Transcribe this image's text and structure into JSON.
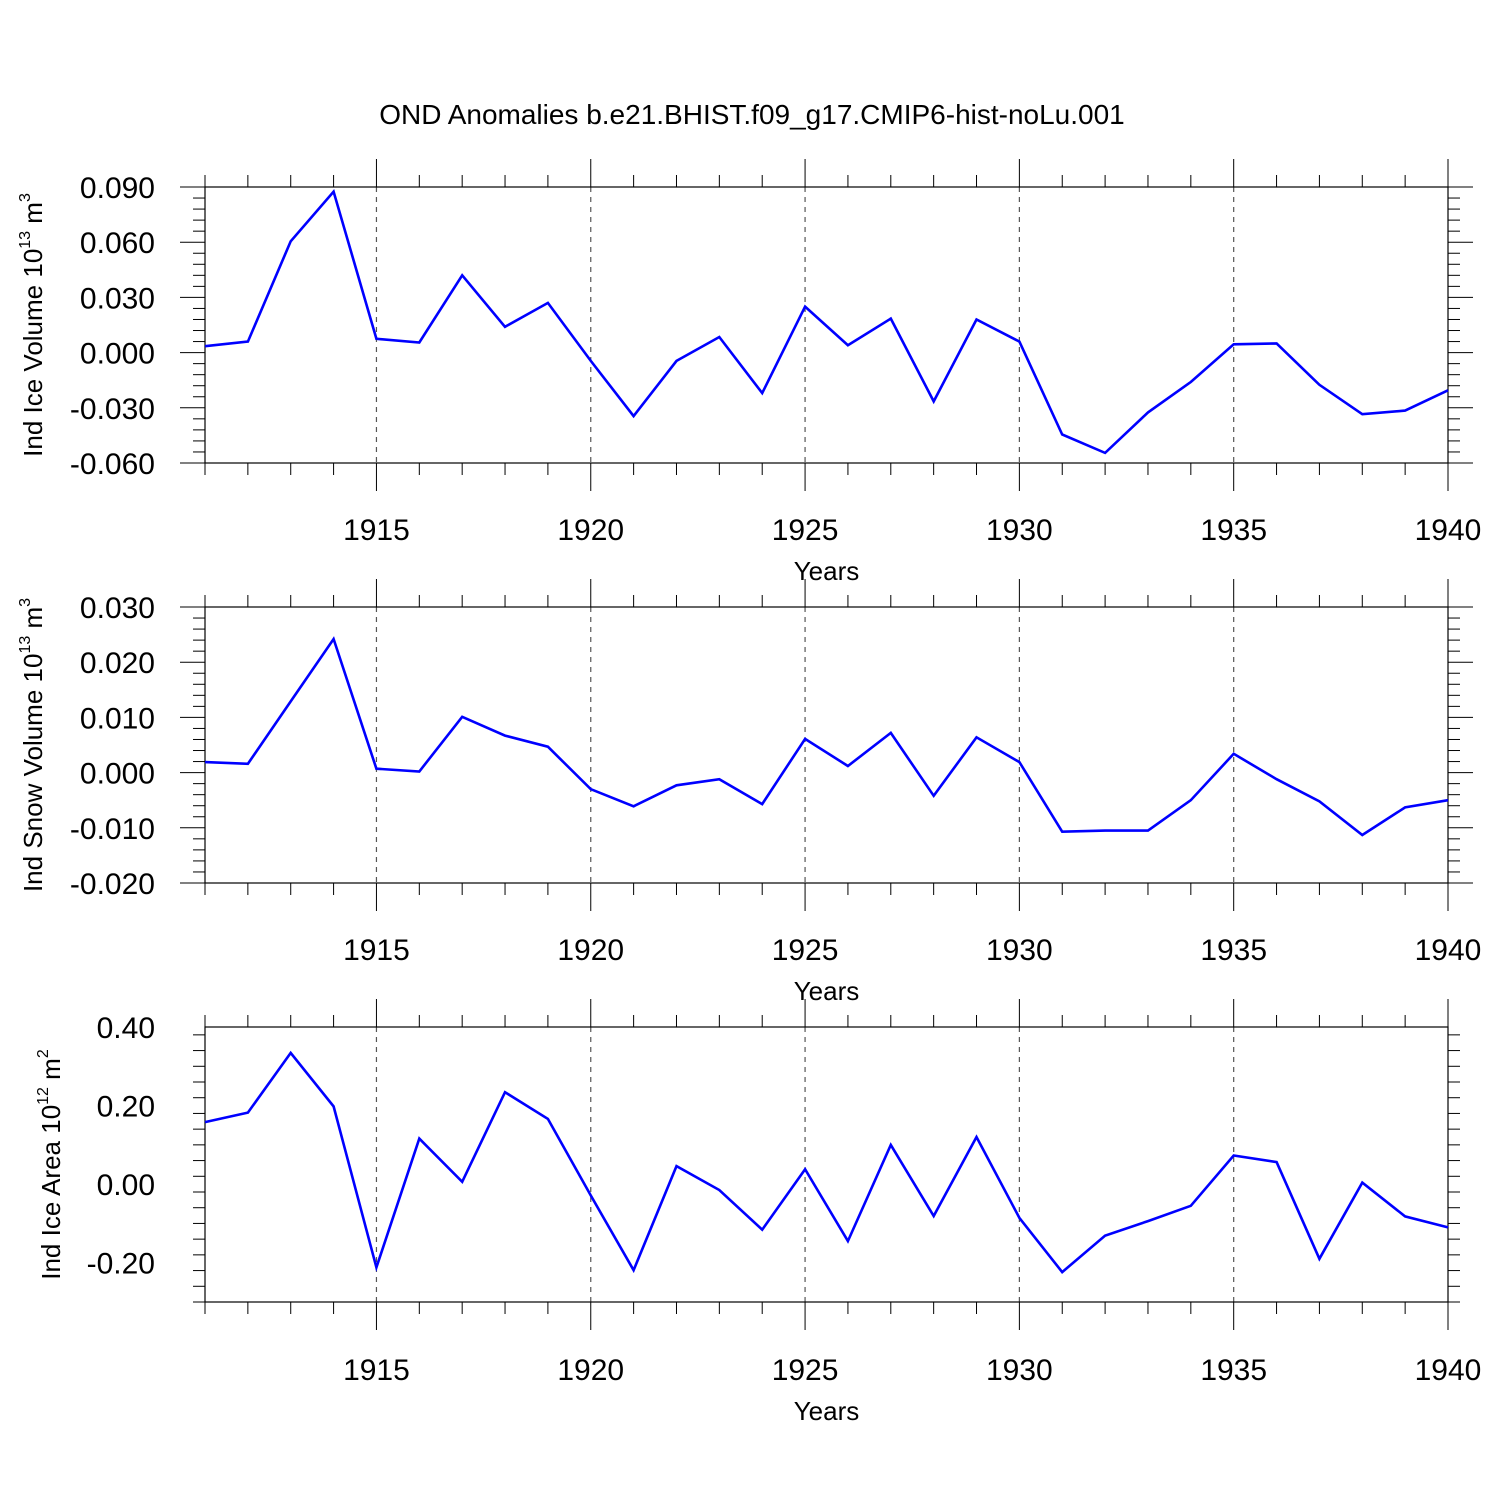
{
  "title": "OND Anomalies b.e21.BHIST.f09_g17.CMIP6-hist-noLu.001",
  "chart_data": [
    {
      "type": "line",
      "ylabel_parts": [
        "Ind Ice Volume 10",
        "13",
        " m",
        "3"
      ],
      "xlabel": "Years",
      "xlim": [
        1911,
        1940
      ],
      "ylim": [
        -0.06,
        0.09
      ],
      "yticks": [
        -0.06,
        -0.03,
        0.0,
        0.03,
        0.06,
        0.09
      ],
      "ytick_labels": [
        "-0.060",
        "-0.030",
        "0.000",
        "0.030",
        "0.060",
        "0.090"
      ],
      "xticks": [
        1915,
        1920,
        1925,
        1930,
        1935,
        1940
      ],
      "xtick_labels": [
        "1915",
        "1920",
        "1925",
        "1930",
        "1935",
        "1940"
      ],
      "grid": "vertical-dashed",
      "color": "#0000ff",
      "x": [
        1911,
        1912,
        1913,
        1914,
        1915,
        1916,
        1917,
        1918,
        1919,
        1920,
        1921,
        1922,
        1923,
        1924,
        1925,
        1926,
        1927,
        1928,
        1929,
        1930,
        1931,
        1932,
        1933,
        1934,
        1935,
        1936,
        1937,
        1938,
        1939,
        1940
      ],
      "values": [
        0.0035,
        0.006,
        0.0605,
        0.0875,
        0.0075,
        0.0055,
        0.042,
        0.014,
        0.027,
        -0.0045,
        -0.0345,
        -0.0045,
        0.0085,
        -0.022,
        0.025,
        0.004,
        0.0185,
        -0.0265,
        0.018,
        0.006,
        -0.0445,
        -0.0545,
        -0.0325,
        -0.016,
        0.0045,
        0.005,
        -0.0175,
        -0.0335,
        -0.0315,
        -0.0205
      ]
    },
    {
      "type": "line",
      "ylabel_parts": [
        "Ind Snow Volume 10",
        "13",
        " m",
        "3"
      ],
      "xlabel": "Years",
      "xlim": [
        1911,
        1940
      ],
      "ylim": [
        -0.02,
        0.03
      ],
      "yticks": [
        -0.02,
        -0.01,
        0.0,
        0.01,
        0.02,
        0.03
      ],
      "ytick_labels": [
        "-0.020",
        "-0.010",
        "0.000",
        "0.010",
        "0.020",
        "0.030"
      ],
      "xticks": [
        1915,
        1920,
        1925,
        1930,
        1935,
        1940
      ],
      "xtick_labels": [
        "1915",
        "1920",
        "1925",
        "1930",
        "1935",
        "1940"
      ],
      "grid": "vertical-dashed",
      "color": "#0000ff",
      "x": [
        1911,
        1912,
        1913,
        1914,
        1915,
        1916,
        1917,
        1918,
        1919,
        1920,
        1921,
        1922,
        1923,
        1924,
        1925,
        1926,
        1927,
        1928,
        1929,
        1930,
        1931,
        1932,
        1933,
        1934,
        1935,
        1936,
        1937,
        1938,
        1939,
        1940
      ],
      "values": [
        0.0019,
        0.0016,
        0.0129,
        0.0242,
        0.0007,
        0.0002,
        0.0101,
        0.0067,
        0.0047,
        -0.003,
        -0.0061,
        -0.0023,
        -0.0012,
        -0.0057,
        0.0061,
        0.0012,
        0.0072,
        -0.0042,
        0.0064,
        0.0019,
        -0.0107,
        -0.0105,
        -0.0105,
        -0.005,
        0.0034,
        -0.0012,
        -0.0052,
        -0.0113,
        -0.0063,
        -0.005
      ]
    },
    {
      "type": "line",
      "ylabel_parts": [
        "Ind Ice Area 10",
        "12",
        " m",
        "2"
      ],
      "xlabel": "Years",
      "xlim": [
        1911,
        1940
      ],
      "ylim": [
        -0.3,
        0.4
      ],
      "yticks": [
        -0.2,
        0.0,
        0.2,
        0.4
      ],
      "ytick_labels": [
        "-0.20",
        "0.00",
        "0.20",
        "0.40"
      ],
      "xticks": [
        1915,
        1920,
        1925,
        1930,
        1935,
        1940
      ],
      "xtick_labels": [
        "1915",
        "1920",
        "1925",
        "1930",
        "1935",
        "1940"
      ],
      "grid": "vertical-dashed",
      "color": "#0000ff",
      "x": [
        1911,
        1912,
        1913,
        1914,
        1915,
        1916,
        1917,
        1918,
        1919,
        1920,
        1921,
        1922,
        1923,
        1924,
        1925,
        1926,
        1927,
        1928,
        1929,
        1930,
        1931,
        1932,
        1933,
        1934,
        1935,
        1936,
        1937,
        1938,
        1939,
        1940
      ],
      "values": [
        0.158,
        0.182,
        0.334,
        0.198,
        -0.212,
        0.116,
        0.006,
        0.234,
        0.166,
        -0.029,
        -0.219,
        0.046,
        -0.015,
        -0.116,
        0.038,
        -0.145,
        0.1,
        -0.081,
        0.12,
        -0.086,
        -0.224,
        -0.131,
        -0.094,
        -0.055,
        0.073,
        0.056,
        -0.19,
        0.004,
        -0.082,
        -0.11
      ]
    }
  ]
}
